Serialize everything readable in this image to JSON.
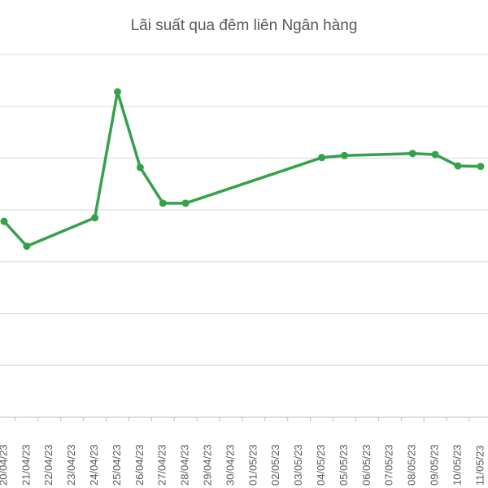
{
  "chart_data": {
    "type": "line",
    "title": "Lãi suất qua đêm liên Ngân hàng",
    "categories": [
      "20/04/23",
      "21/04/23",
      "22/04/23",
      "23/04/23",
      "24/04/23",
      "25/04/23",
      "26/04/23",
      "27/04/23",
      "28/04/23",
      "29/04/23",
      "30/04/23",
      "01/05/23",
      "02/05/23",
      "03/05/23",
      "04/05/23",
      "05/05/23",
      "06/05/23",
      "07/05/23",
      "08/05/23",
      "09/05/23",
      "10/05/23",
      "11/05/23"
    ],
    "x": [
      "20/04/23",
      "21/04/23",
      "24/04/23",
      "25/04/23",
      "26/04/23",
      "27/04/23",
      "28/04/23",
      "04/05/23",
      "05/05/23",
      "08/05/23",
      "09/05/23",
      "10/05/23",
      "11/05/23"
    ],
    "series": [
      {
        "color": "#35a14b",
        "values": [
          3.78,
          3.3,
          3.85,
          6.28,
          4.82,
          4.13,
          4.13,
          5.01,
          5.05,
          5.09,
          5.07,
          4.85,
          4.84
        ]
      }
    ],
    "ylim": [
      0,
      7
    ],
    "yticks": [
      1,
      2,
      3,
      4,
      5,
      6,
      7
    ],
    "grid": true
  }
}
